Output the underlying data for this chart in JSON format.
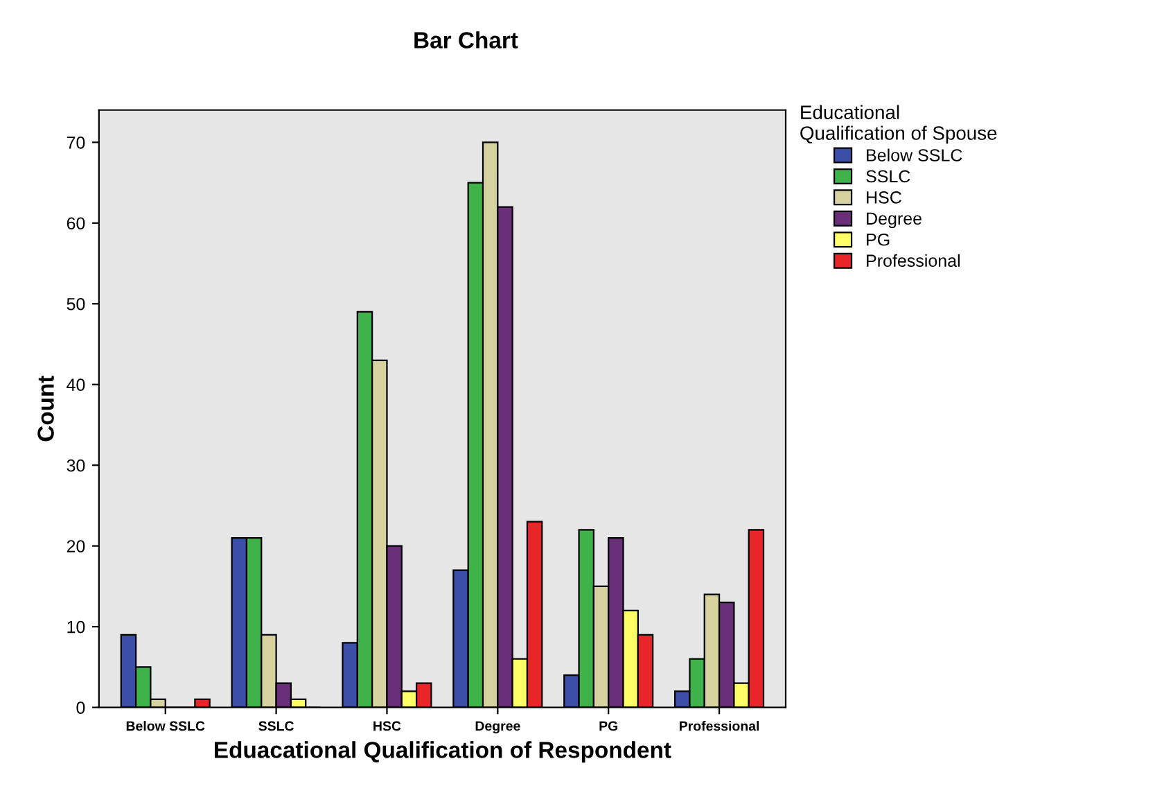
{
  "chart_data": {
    "type": "bar",
    "title": "Bar Chart",
    "xlabel": "Eduacational Qualification of Respondent",
    "ylabel": "Count",
    "legend_title": "Educational\nQualification of Spouse",
    "categories": [
      "Below SSLC",
      "SSLC",
      "HSC",
      "Degree",
      "PG",
      "Professional"
    ],
    "series": [
      {
        "name": "Below SSLC",
        "color": "#3c4fa8",
        "values": [
          9,
          21,
          8,
          17,
          4,
          2
        ]
      },
      {
        "name": "SSLC",
        "color": "#3fb34a",
        "values": [
          5,
          21,
          49,
          65,
          22,
          6
        ]
      },
      {
        "name": "HSC",
        "color": "#d6d3a0",
        "values": [
          1,
          9,
          43,
          70,
          15,
          14
        ]
      },
      {
        "name": "Degree",
        "color": "#6b2f7a",
        "values": [
          0,
          3,
          20,
          62,
          21,
          13
        ]
      },
      {
        "name": "PG",
        "color": "#ffff66",
        "values": [
          0,
          1,
          2,
          6,
          12,
          3
        ]
      },
      {
        "name": "Professional",
        "color": "#e8262a",
        "values": [
          1,
          0,
          3,
          23,
          9,
          22
        ]
      }
    ],
    "ylim": [
      0,
      74
    ],
    "yticks": [
      0,
      10,
      20,
      30,
      40,
      50,
      60,
      70
    ],
    "grid": false,
    "legend": "right"
  }
}
